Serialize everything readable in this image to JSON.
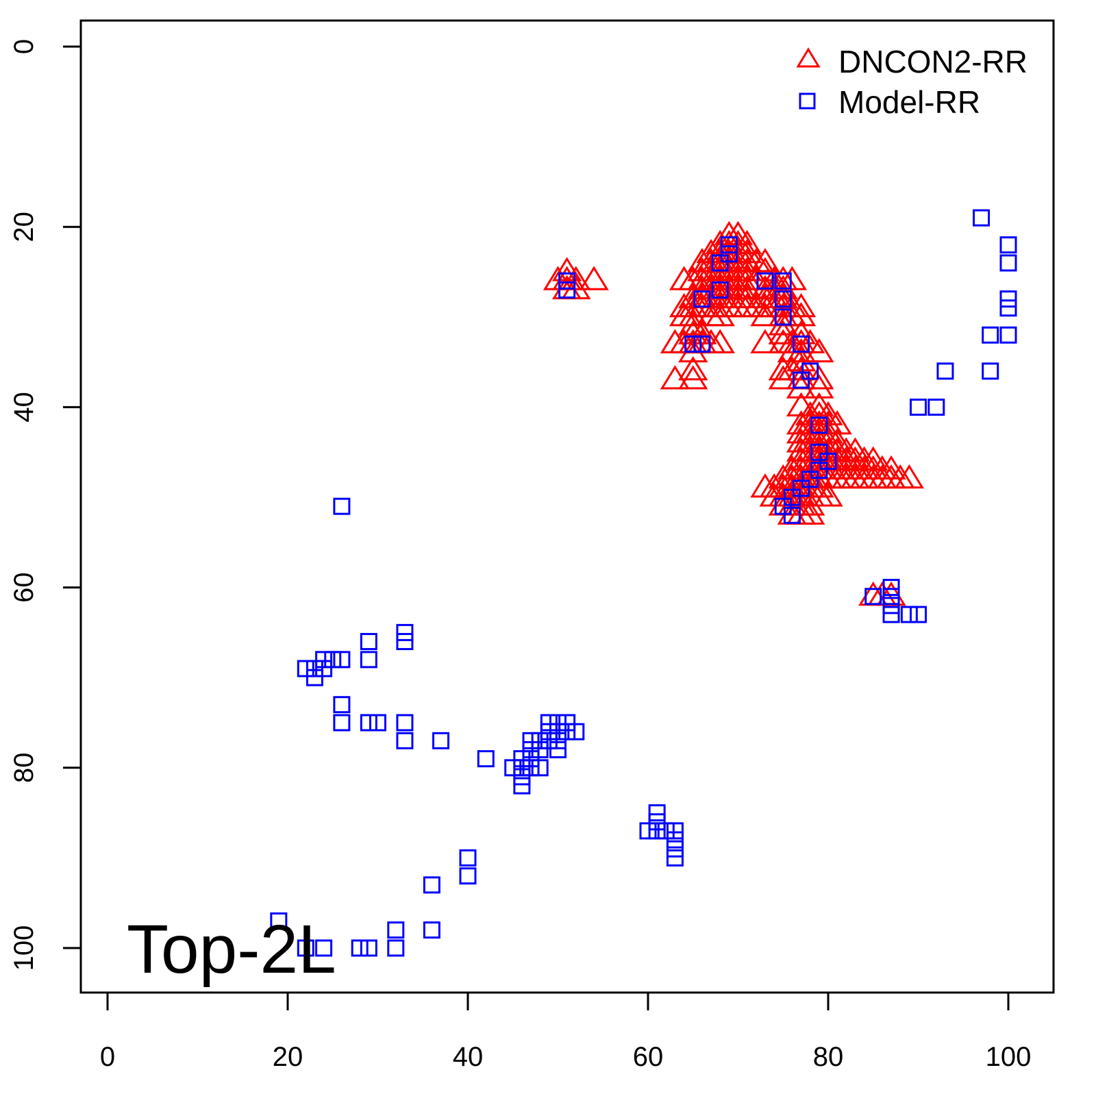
{
  "chart_data": {
    "type": "scatter",
    "title": "",
    "xlabel": "",
    "ylabel": "",
    "xlim": [
      -1.5,
      105
    ],
    "ylim": [
      105,
      -3
    ],
    "y_inverted": true,
    "grid": false,
    "xticks": [
      0,
      20,
      40,
      60,
      80,
      100
    ],
    "yticks": [
      0,
      20,
      40,
      60,
      80,
      100
    ],
    "annotation": "Top-2L",
    "legend": {
      "position": "top-right",
      "entries": [
        "DNCON2-RR",
        "Model-RR"
      ]
    },
    "series": [
      {
        "name": "DNCON2-RR",
        "marker": "triangle",
        "color": "#ff0000",
        "points": [
          [
            50,
            26
          ],
          [
            51,
            25
          ],
          [
            51,
            26
          ],
          [
            52,
            26
          ],
          [
            52,
            27
          ],
          [
            54,
            26
          ],
          [
            51,
            27
          ],
          [
            69,
            21
          ],
          [
            70,
            21
          ],
          [
            68,
            22
          ],
          [
            69,
            22
          ],
          [
            70,
            22
          ],
          [
            71,
            22
          ],
          [
            67,
            23
          ],
          [
            68,
            23
          ],
          [
            69,
            23
          ],
          [
            70,
            23
          ],
          [
            71,
            23
          ],
          [
            66,
            24
          ],
          [
            67,
            24
          ],
          [
            68,
            24
          ],
          [
            69,
            24
          ],
          [
            70,
            24
          ],
          [
            71,
            24
          ],
          [
            72,
            24
          ],
          [
            73,
            24
          ],
          [
            66,
            25
          ],
          [
            67,
            25
          ],
          [
            68,
            25
          ],
          [
            69,
            25
          ],
          [
            70,
            25
          ],
          [
            71,
            25
          ],
          [
            73,
            25
          ],
          [
            64,
            26
          ],
          [
            65,
            26
          ],
          [
            66,
            26
          ],
          [
            67,
            26
          ],
          [
            68,
            26
          ],
          [
            69,
            26
          ],
          [
            70,
            26
          ],
          [
            71,
            26
          ],
          [
            72,
            26
          ],
          [
            74,
            26
          ],
          [
            75,
            26
          ],
          [
            76,
            26
          ],
          [
            66,
            27
          ],
          [
            67,
            27
          ],
          [
            68,
            27
          ],
          [
            69,
            27
          ],
          [
            70,
            27
          ],
          [
            71,
            27
          ],
          [
            73,
            27
          ],
          [
            74,
            27
          ],
          [
            75,
            27
          ],
          [
            65,
            28
          ],
          [
            66,
            28
          ],
          [
            67,
            28
          ],
          [
            68,
            28
          ],
          [
            69,
            28
          ],
          [
            70,
            28
          ],
          [
            71,
            28
          ],
          [
            73,
            28
          ],
          [
            74,
            28
          ],
          [
            75,
            28
          ],
          [
            64,
            29
          ],
          [
            65,
            29
          ],
          [
            66,
            29
          ],
          [
            67,
            29
          ],
          [
            68,
            29
          ],
          [
            69,
            29
          ],
          [
            70,
            29
          ],
          [
            71,
            29
          ],
          [
            72,
            29
          ],
          [
            73,
            29
          ],
          [
            74,
            29
          ],
          [
            75,
            29
          ],
          [
            76,
            29
          ],
          [
            77,
            29
          ],
          [
            64,
            30
          ],
          [
            65,
            30
          ],
          [
            67,
            30
          ],
          [
            68,
            30
          ],
          [
            73,
            30
          ],
          [
            75,
            30
          ],
          [
            76,
            30
          ],
          [
            77,
            30
          ],
          [
            65,
            31
          ],
          [
            75,
            31
          ],
          [
            65,
            32
          ],
          [
            66,
            32
          ],
          [
            75,
            32
          ],
          [
            77,
            32
          ],
          [
            63,
            33
          ],
          [
            64,
            33
          ],
          [
            65,
            33
          ],
          [
            66,
            33
          ],
          [
            67,
            33
          ],
          [
            68,
            33
          ],
          [
            73,
            33
          ],
          [
            75,
            33
          ],
          [
            76,
            33
          ],
          [
            77,
            33
          ],
          [
            78,
            33
          ],
          [
            65,
            34
          ],
          [
            76,
            34
          ],
          [
            77,
            34
          ],
          [
            79,
            34
          ],
          [
            77,
            35
          ],
          [
            65,
            36
          ],
          [
            75,
            36
          ],
          [
            76,
            36
          ],
          [
            77,
            36
          ],
          [
            63,
            37
          ],
          [
            65,
            37
          ],
          [
            75,
            37
          ],
          [
            77,
            37
          ],
          [
            79,
            37
          ],
          [
            77,
            38
          ],
          [
            79,
            38
          ],
          [
            77,
            40
          ],
          [
            79,
            40
          ],
          [
            78,
            41
          ],
          [
            79,
            41
          ],
          [
            80,
            41
          ],
          [
            77,
            42
          ],
          [
            78,
            42
          ],
          [
            79,
            42
          ],
          [
            80,
            42
          ],
          [
            81,
            42
          ],
          [
            77,
            43
          ],
          [
            78,
            43
          ],
          [
            79,
            43
          ],
          [
            80,
            43
          ],
          [
            77,
            44
          ],
          [
            78,
            44
          ],
          [
            79,
            44
          ],
          [
            80,
            44
          ],
          [
            81,
            44
          ],
          [
            77,
            45
          ],
          [
            78,
            45
          ],
          [
            79,
            45
          ],
          [
            80,
            45
          ],
          [
            81,
            45
          ],
          [
            82,
            45
          ],
          [
            83,
            45
          ],
          [
            77,
            46
          ],
          [
            78,
            46
          ],
          [
            79,
            46
          ],
          [
            80,
            46
          ],
          [
            81,
            46
          ],
          [
            82,
            46
          ],
          [
            83,
            46
          ],
          [
            84,
            46
          ],
          [
            85,
            46
          ],
          [
            76,
            47
          ],
          [
            77,
            47
          ],
          [
            78,
            47
          ],
          [
            79,
            47
          ],
          [
            80,
            47
          ],
          [
            81,
            47
          ],
          [
            82,
            47
          ],
          [
            83,
            47
          ],
          [
            84,
            47
          ],
          [
            85,
            47
          ],
          [
            86,
            47
          ],
          [
            87,
            47
          ],
          [
            75,
            48
          ],
          [
            76,
            48
          ],
          [
            77,
            48
          ],
          [
            78,
            48
          ],
          [
            79,
            48
          ],
          [
            80,
            48
          ],
          [
            81,
            48
          ],
          [
            82,
            48
          ],
          [
            83,
            48
          ],
          [
            84,
            48
          ],
          [
            85,
            48
          ],
          [
            86,
            48
          ],
          [
            87,
            48
          ],
          [
            88,
            48
          ],
          [
            89,
            48
          ],
          [
            73,
            49
          ],
          [
            74,
            49
          ],
          [
            75,
            49
          ],
          [
            76,
            49
          ],
          [
            77,
            49
          ],
          [
            78,
            49
          ],
          [
            79,
            49
          ],
          [
            74,
            50
          ],
          [
            75,
            50
          ],
          [
            76,
            50
          ],
          [
            77,
            50
          ],
          [
            78,
            50
          ],
          [
            79,
            50
          ],
          [
            80,
            50
          ],
          [
            75,
            51
          ],
          [
            76,
            51
          ],
          [
            77,
            51
          ],
          [
            78,
            51
          ],
          [
            76,
            52
          ],
          [
            77,
            52
          ],
          [
            78,
            52
          ],
          [
            85,
            61
          ],
          [
            86,
            61
          ],
          [
            87,
            61
          ]
        ]
      },
      {
        "name": "Model-RR",
        "marker": "square",
        "color": "#0000ff",
        "points": [
          [
            97,
            19
          ],
          [
            100,
            22
          ],
          [
            100,
            24
          ],
          [
            100,
            28
          ],
          [
            100,
            29
          ],
          [
            100,
            32
          ],
          [
            98,
            32
          ],
          [
            98,
            36
          ],
          [
            93,
            36
          ],
          [
            90,
            40
          ],
          [
            92,
            40
          ],
          [
            51,
            26
          ],
          [
            51,
            27
          ],
          [
            69,
            22
          ],
          [
            69,
            23
          ],
          [
            68,
            24
          ],
          [
            68,
            27
          ],
          [
            66,
            28
          ],
          [
            65,
            33
          ],
          [
            66,
            33
          ],
          [
            73,
            26
          ],
          [
            75,
            26
          ],
          [
            75,
            28
          ],
          [
            75,
            30
          ],
          [
            77,
            33
          ],
          [
            77,
            37
          ],
          [
            78,
            36
          ],
          [
            79,
            42
          ],
          [
            79,
            45
          ],
          [
            80,
            46
          ],
          [
            79,
            47
          ],
          [
            78,
            48
          ],
          [
            77,
            49
          ],
          [
            76,
            50
          ],
          [
            75,
            51
          ],
          [
            76,
            52
          ],
          [
            26,
            51
          ],
          [
            87,
            60
          ],
          [
            87,
            61
          ],
          [
            87,
            62
          ],
          [
            87,
            63
          ],
          [
            89,
            63
          ],
          [
            90,
            63
          ],
          [
            85,
            61
          ],
          [
            29,
            66
          ],
          [
            29,
            68
          ],
          [
            33,
            65
          ],
          [
            33,
            66
          ],
          [
            22,
            69
          ],
          [
            23,
            69
          ],
          [
            23,
            70
          ],
          [
            24,
            69
          ],
          [
            24,
            68
          ],
          [
            25,
            68
          ],
          [
            26,
            68
          ],
          [
            26,
            73
          ],
          [
            26,
            75
          ],
          [
            29,
            75
          ],
          [
            30,
            75
          ],
          [
            33,
            75
          ],
          [
            33,
            77
          ],
          [
            37,
            77
          ],
          [
            42,
            79
          ],
          [
            50,
            75
          ],
          [
            51,
            75
          ],
          [
            52,
            76
          ],
          [
            49,
            75
          ],
          [
            49,
            76
          ],
          [
            50,
            76
          ],
          [
            51,
            76
          ],
          [
            49,
            77
          ],
          [
            50,
            77
          ],
          [
            50,
            78
          ],
          [
            47,
            77
          ],
          [
            48,
            77
          ],
          [
            47,
            78
          ],
          [
            48,
            78
          ],
          [
            47,
            79
          ],
          [
            46,
            79
          ],
          [
            46,
            80
          ],
          [
            45,
            80
          ],
          [
            47,
            80
          ],
          [
            48,
            80
          ],
          [
            46,
            81
          ],
          [
            46,
            82
          ],
          [
            60,
            87
          ],
          [
            61,
            85
          ],
          [
            61,
            86
          ],
          [
            61,
            87
          ],
          [
            62,
            87
          ],
          [
            63,
            87
          ],
          [
            63,
            88
          ],
          [
            63,
            89
          ],
          [
            63,
            90
          ],
          [
            40,
            90
          ],
          [
            40,
            92
          ],
          [
            36,
            93
          ],
          [
            36,
            98
          ],
          [
            19,
            97
          ],
          [
            22,
            100
          ],
          [
            24,
            100
          ],
          [
            28,
            100
          ],
          [
            29,
            100
          ],
          [
            32,
            98
          ],
          [
            32,
            100
          ]
        ]
      }
    ]
  }
}
